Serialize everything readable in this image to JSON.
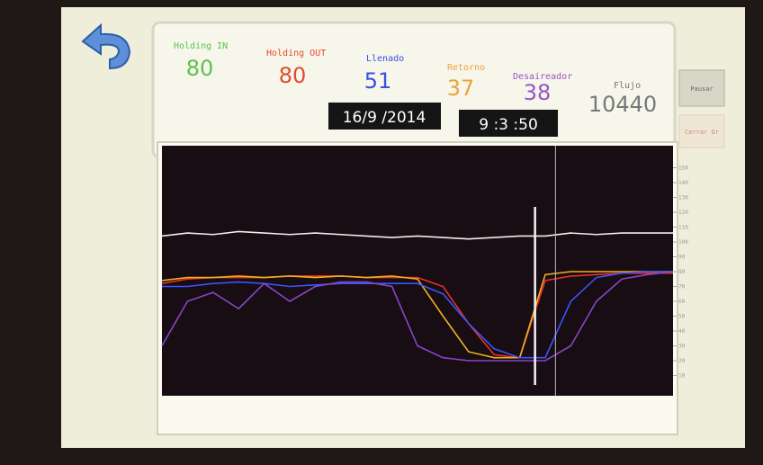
{
  "screen": {
    "readings": [
      {
        "label": "Holding IN",
        "value": "80"
      },
      {
        "label": "Holding OUT",
        "value": "80"
      },
      {
        "label": "Llenado",
        "value": "51"
      },
      {
        "label": "Retorno",
        "value": "37"
      },
      {
        "label": "Desaireador",
        "value": "38"
      },
      {
        "label": "Flujo",
        "value": "10440"
      }
    ],
    "date": "16/9 /2014",
    "time": "9 :3 :50",
    "buttons": [
      "Pausar",
      "Cerrar Gr"
    ]
  },
  "chart_data": {
    "type": "line",
    "x": [
      0,
      5,
      10,
      15,
      20,
      25,
      30,
      35,
      40,
      45,
      50,
      55,
      60,
      65,
      70,
      75,
      80,
      85,
      90,
      95,
      100
    ],
    "xlim": [
      0,
      100
    ],
    "ylim": [
      0,
      160
    ],
    "yticks": [
      10,
      20,
      30,
      40,
      50,
      60,
      70,
      80,
      90,
      100,
      110,
      120,
      130,
      140,
      150
    ],
    "markers": [
      73,
      77
    ],
    "series": [
      {
        "color": "#eeeeee",
        "values": [
          104,
          106,
          105,
          107,
          106,
          105,
          106,
          105,
          104,
          103,
          104,
          103,
          102,
          103,
          104,
          104,
          106,
          105,
          106,
          106,
          106
        ]
      },
      {
        "color": "#e8302a",
        "values": [
          72,
          75,
          76,
          76,
          76,
          77,
          77,
          77,
          76,
          76,
          76,
          70,
          45,
          24,
          22,
          74,
          77,
          78,
          79,
          79,
          79
        ]
      },
      {
        "color": "#f0b020",
        "values": [
          74,
          76,
          76,
          77,
          76,
          77,
          76,
          77,
          76,
          77,
          75,
          50,
          26,
          22,
          22,
          78,
          80,
          80,
          80,
          80,
          80
        ]
      },
      {
        "color": "#3a55ff",
        "values": [
          70,
          70,
          72,
          73,
          72,
          70,
          71,
          72,
          72,
          72,
          72,
          65,
          45,
          28,
          22,
          22,
          60,
          76,
          79,
          80,
          80
        ]
      },
      {
        "color": "#8a45c8",
        "values": [
          30,
          60,
          66,
          55,
          72,
          60,
          70,
          73,
          73,
          70,
          30,
          22,
          20,
          20,
          20,
          20,
          30,
          60,
          75,
          78,
          80
        ]
      }
    ]
  }
}
